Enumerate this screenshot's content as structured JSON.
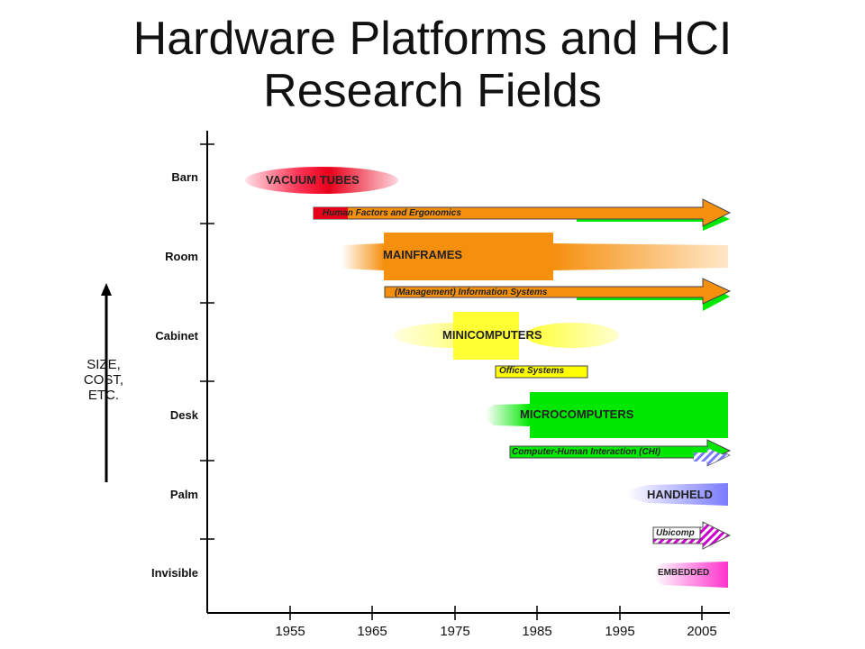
{
  "title": "Hardware Platforms and HCI Research Fields",
  "y_axis": {
    "levels": [
      "Barn",
      "Room",
      "Cabinet",
      "Desk",
      "Palm",
      "Invisible"
    ],
    "label": "SIZE, COST, ETC."
  },
  "x_axis": {
    "ticks": [
      "1955",
      "1965",
      "1975",
      "1985",
      "1995",
      "2005"
    ]
  },
  "platforms": [
    {
      "name": "VACUUM TUBES",
      "level": "Barn",
      "color": "#e8001a"
    },
    {
      "name": "MAINFRAMES",
      "level": "Room",
      "color": "#f5900f"
    },
    {
      "name": "MINICOMPUTERS",
      "level": "Cabinet",
      "color": "#ffff00"
    },
    {
      "name": "MICROCOMPUTERS",
      "level": "Desk",
      "color": "#00e800"
    },
    {
      "name": "HANDHELD",
      "level": "Palm",
      "color": "#8080ff"
    },
    {
      "name": "EMBEDDED",
      "level": "Invisible",
      "color": "#ff33cc"
    }
  ],
  "fields": [
    {
      "name": "Human Factors and Ergonomics"
    },
    {
      "name": "(Management) Information Systems"
    },
    {
      "name": "Office Systems"
    },
    {
      "name": "Computer-Human Interaction (CHI)"
    },
    {
      "name": "Ubicomp"
    }
  ]
}
